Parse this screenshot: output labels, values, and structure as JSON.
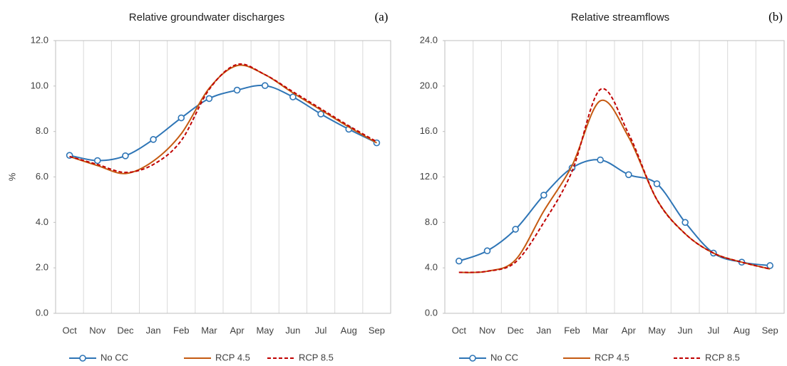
{
  "chart_data": [
    {
      "type": "line",
      "title": "Relative groundwater discharges",
      "panel_label": "(a)",
      "ylabel": "%",
      "categories": [
        "Oct",
        "Nov",
        "Dec",
        "Jan",
        "Feb",
        "Mar",
        "Apr",
        "May",
        "Jun",
        "Jul",
        "Aug",
        "Sep"
      ],
      "ylim": [
        0,
        12
      ],
      "yticks": [
        {
          "value": 0,
          "label": "0.0"
        },
        {
          "value": 2,
          "label": "2.0"
        },
        {
          "value": 4,
          "label": "4.0"
        },
        {
          "value": 6,
          "label": "6.0"
        },
        {
          "value": 8,
          "label": "8.0"
        },
        {
          "value": 10,
          "label": "10.0"
        },
        {
          "value": 12,
          "label": "12.0"
        }
      ],
      "grid": true,
      "smooth": true,
      "series": [
        {
          "name": "No CC",
          "color": "#2e75b6",
          "marker": "circle",
          "line_style": "solid",
          "values": [
            6.95,
            6.72,
            6.93,
            7.65,
            8.6,
            9.45,
            9.82,
            10.02,
            9.52,
            8.77,
            8.1,
            7.5
          ]
        },
        {
          "name": "RCP 4.5",
          "color": "#c55a11",
          "marker": "none",
          "line_style": "solid",
          "values": [
            6.9,
            6.5,
            6.15,
            6.7,
            7.9,
            9.9,
            10.9,
            10.5,
            9.7,
            8.95,
            8.2,
            7.5
          ]
        },
        {
          "name": "RCP 8.5",
          "color": "#c00000",
          "marker": "none",
          "line_style": "dashed",
          "values": [
            6.9,
            6.55,
            6.2,
            6.55,
            7.6,
            9.85,
            10.95,
            10.5,
            9.75,
            9.0,
            8.25,
            7.55
          ]
        }
      ]
    },
    {
      "type": "line",
      "title": "Relative streamflows",
      "panel_label": "(b)",
      "categories": [
        "Oct",
        "Nov",
        "Dec",
        "Jan",
        "Feb",
        "Mar",
        "Apr",
        "May",
        "Jun",
        "Jul",
        "Aug",
        "Sep"
      ],
      "ylim": [
        0,
        24
      ],
      "yticks": [
        {
          "value": 0,
          "label": "0.0"
        },
        {
          "value": 4,
          "label": "4.0"
        },
        {
          "value": 8,
          "label": "8.0"
        },
        {
          "value": 12,
          "label": "12.0"
        },
        {
          "value": 16,
          "label": "16.0"
        },
        {
          "value": 20,
          "label": "20.0"
        },
        {
          "value": 24,
          "label": "24.0"
        }
      ],
      "grid": true,
      "smooth": true,
      "series": [
        {
          "name": "No CC",
          "color": "#2e75b6",
          "marker": "circle",
          "line_style": "solid",
          "values": [
            4.6,
            5.5,
            7.4,
            10.4,
            12.8,
            13.5,
            12.2,
            11.4,
            8.0,
            5.3,
            4.5,
            4.2
          ]
        },
        {
          "name": "RCP 4.5",
          "color": "#c55a11",
          "marker": "none",
          "line_style": "solid",
          "values": [
            3.6,
            3.7,
            4.7,
            9.0,
            13.0,
            18.7,
            15.5,
            10.0,
            7.0,
            5.3,
            4.5,
            3.9
          ]
        },
        {
          "name": "RCP 8.5",
          "color": "#c00000",
          "marker": "none",
          "line_style": "dashed",
          "values": [
            3.6,
            3.7,
            4.5,
            8.0,
            12.5,
            19.7,
            15.8,
            10.0,
            7.0,
            5.3,
            4.5,
            3.9
          ]
        }
      ]
    }
  ]
}
